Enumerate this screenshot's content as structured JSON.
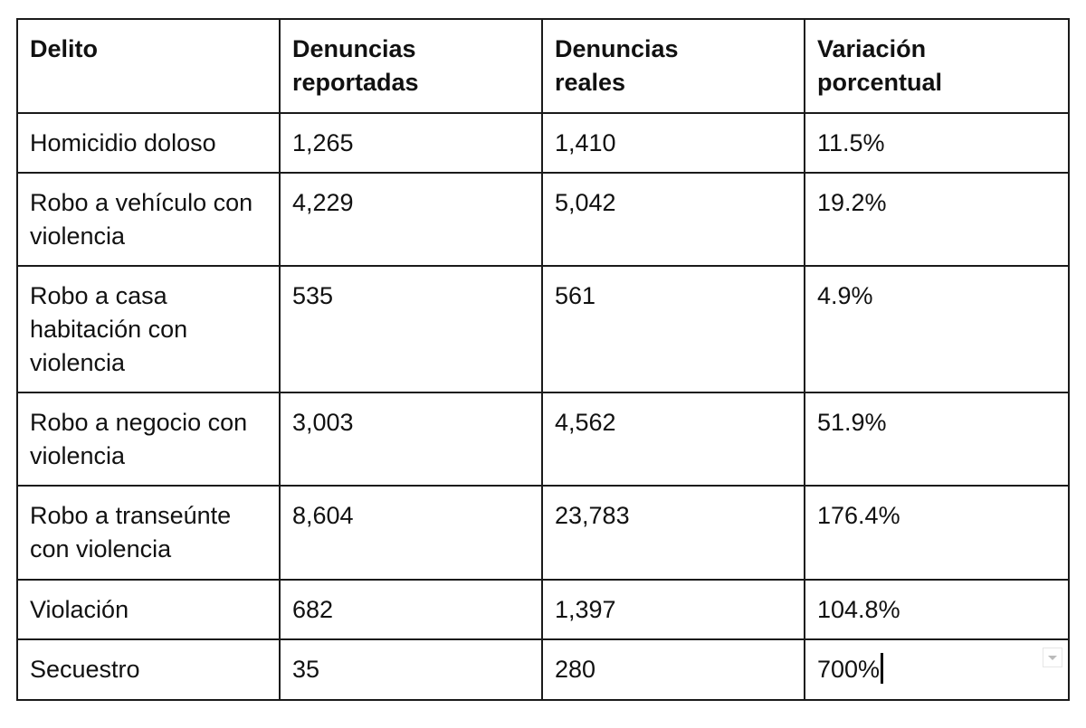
{
  "table": {
    "headers": [
      "Delito",
      "Denuncias reportadas",
      "Denuncias reales",
      "Variación porcentual"
    ],
    "rows": [
      [
        "Homicidio doloso",
        "1,265",
        "1,410",
        "11.5%"
      ],
      [
        "Robo a vehículo con violencia",
        "4,229",
        "5,042",
        "19.2%"
      ],
      [
        "Robo a casa habitación con violencia",
        "535",
        "561",
        "4.9%"
      ],
      [
        "Robo a negocio con violencia",
        "3,003",
        "4,562",
        "51.9%"
      ],
      [
        "Robo a transeúnte con violencia",
        "8,604",
        "23,783",
        "176.4%"
      ],
      [
        "Violación",
        "682",
        "1,397",
        "104.8%"
      ],
      [
        "Secuestro",
        "35",
        "280",
        "700%"
      ]
    ]
  },
  "icons": {
    "cell_menu": "dropdown-arrow-icon",
    "text_cursor": "text-cursor"
  }
}
